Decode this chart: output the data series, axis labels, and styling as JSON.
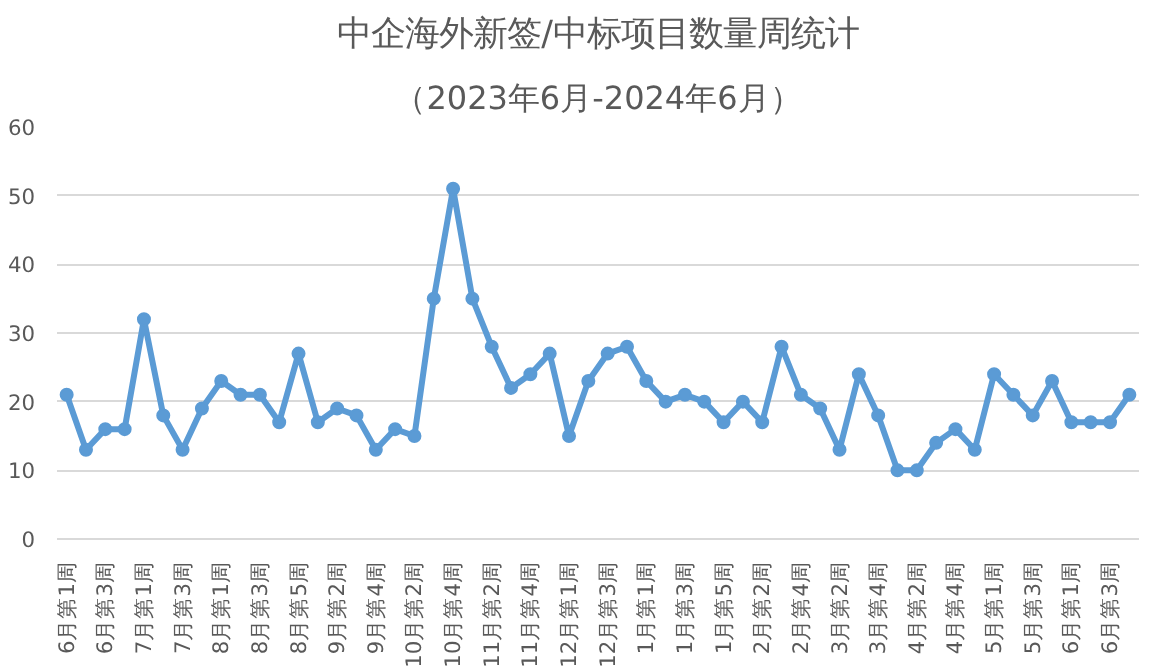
{
  "chart_data": {
    "type": "line",
    "title": "中企海外新签/中标项目数量周统计",
    "subtitle": "（2023年6月-2024年6月）",
    "categories": [
      "6月第1周",
      null,
      "6月第3周",
      null,
      "7月第1周",
      null,
      "7月第3周",
      null,
      "8月第1周",
      null,
      "8月第3周",
      null,
      "8月第5周",
      null,
      "9月第2周",
      null,
      "9月第4周",
      null,
      "10月第2周",
      null,
      "10月第4周",
      null,
      "11月第2周",
      null,
      "11月第4周",
      null,
      "12月第1周",
      null,
      "12月第3周",
      null,
      "1月第1周",
      null,
      "1月第3周",
      null,
      "1月第5周",
      null,
      "2月第2周",
      null,
      "2月第4周",
      null,
      "3月第2周",
      null,
      "3月第4周",
      null,
      "4月第2周",
      null,
      "4月第4周",
      null,
      "5月第1周",
      null,
      "5月第3周",
      null,
      "6月第1周",
      null,
      "6月第3周",
      null
    ],
    "series": [
      {
        "color": "#5b9bd5",
        "values": [
          21,
          13,
          16,
          16,
          32,
          18,
          13,
          19,
          23,
          21,
          21,
          17,
          27,
          17,
          19,
          18,
          13,
          16,
          15,
          35,
          51,
          35,
          28,
          22,
          24,
          27,
          15,
          23,
          27,
          28,
          23,
          20,
          21,
          20,
          17,
          20,
          17,
          28,
          21,
          19,
          13,
          24,
          18,
          10,
          10,
          14,
          16,
          13,
          24,
          21,
          18,
          23,
          17,
          17,
          17,
          21
        ]
      }
    ],
    "ylim": [
      0,
      60
    ],
    "yticks": [
      0,
      10,
      20,
      30,
      40,
      50,
      60
    ],
    "grid": "y",
    "marker": "circle",
    "line_style": "solid"
  }
}
